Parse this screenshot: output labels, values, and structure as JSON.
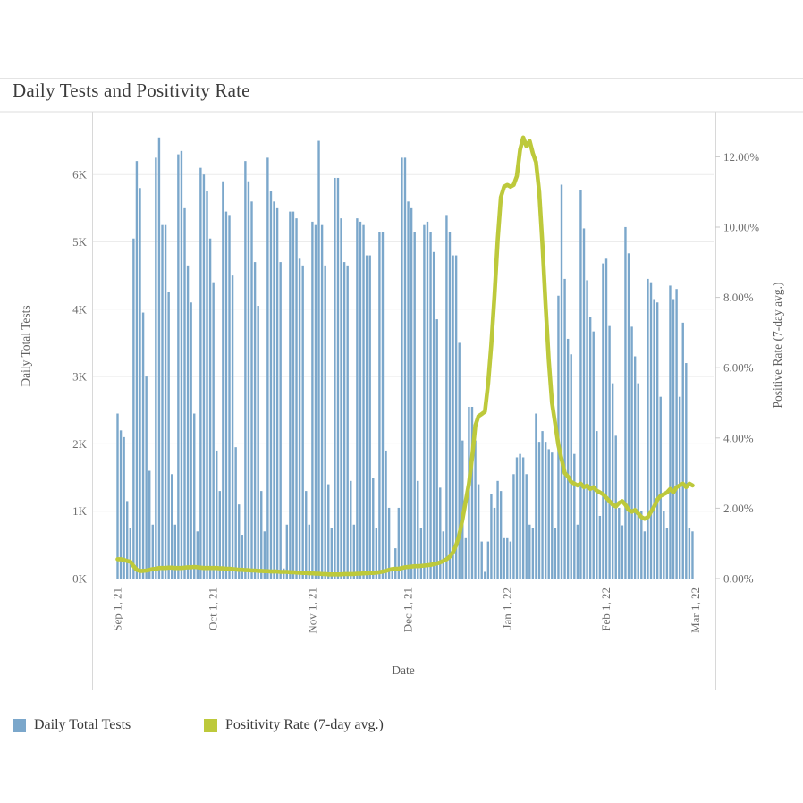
{
  "title": "Daily Tests and Positivity Rate",
  "colors": {
    "bar": "#7ba7cb",
    "line": "#bdc93b",
    "grid": "#ececec",
    "frame": "#d8d8d8",
    "tick_text": "#6e6e6e",
    "title_text": "#3b3b3b"
  },
  "legend": {
    "items": [
      {
        "label": "Daily Total Tests",
        "color": "#7ba7cb"
      },
      {
        "label": "Positivity Rate (7-day avg.)",
        "color": "#bdc93b"
      }
    ]
  },
  "chart_data": {
    "type": "combo",
    "title": "Daily Tests and Positivity Rate",
    "xlabel": "Date",
    "ylabel_left": "Daily Total Tests",
    "ylabel_right": "Positive Rate (7-day avg.)",
    "grid": "horizontal",
    "legend_position": "bottom",
    "x_unit": "day index from Sep 1, 2021",
    "x_ticks": [
      {
        "label": "Sep 1, 21",
        "day": 0
      },
      {
        "label": "Oct 1, 21",
        "day": 30
      },
      {
        "label": "Nov 1, 21",
        "day": 61
      },
      {
        "label": "Dec 1, 21",
        "day": 91
      },
      {
        "label": "Jan 1, 22",
        "day": 122
      },
      {
        "label": "Feb 1, 22",
        "day": 153
      },
      {
        "label": "Mar 1, 22",
        "day": 181
      }
    ],
    "y_left_ticks": [
      {
        "label": "0K",
        "value": 0
      },
      {
        "label": "1K",
        "value": 1000
      },
      {
        "label": "2K",
        "value": 2000
      },
      {
        "label": "3K",
        "value": 3000
      },
      {
        "label": "4K",
        "value": 4000
      },
      {
        "label": "5K",
        "value": 5000
      },
      {
        "label": "6K",
        "value": 6000
      }
    ],
    "y_right_ticks": [
      {
        "label": "0.00%",
        "value": 0
      },
      {
        "label": "2.00%",
        "value": 2
      },
      {
        "label": "4.00%",
        "value": 4
      },
      {
        "label": "6.00%",
        "value": 6
      },
      {
        "label": "8.00%",
        "value": 8
      },
      {
        "label": "10.00%",
        "value": 10
      },
      {
        "label": "12.00%",
        "value": 12
      }
    ],
    "y_left_range": [
      0,
      6900
    ],
    "y_right_range": [
      0,
      13.3
    ],
    "series": [
      {
        "name": "Daily Total Tests",
        "type": "bar",
        "axis": "left",
        "values": [
          2450,
          2200,
          2100,
          1150,
          750,
          5050,
          6200,
          5800,
          3950,
          3000,
          1600,
          800,
          6250,
          6550,
          5250,
          5250,
          4250,
          1550,
          800,
          6300,
          6350,
          5500,
          4650,
          4100,
          2450,
          700,
          6100,
          6000,
          5750,
          5050,
          4400,
          1900,
          1300,
          5900,
          5450,
          5400,
          4500,
          1950,
          1100,
          650,
          6200,
          5900,
          5600,
          4700,
          4050,
          1300,
          700,
          6250,
          5750,
          5600,
          5500,
          4700,
          150,
          800,
          5450,
          5450,
          5350,
          4750,
          4650,
          1300,
          800,
          5300,
          5250,
          6500,
          5250,
          4650,
          1400,
          750,
          5950,
          5950,
          5350,
          4700,
          4650,
          1450,
          800,
          5350,
          5300,
          5250,
          4800,
          4800,
          1500,
          750,
          5150,
          5150,
          1900,
          1050,
          150,
          450,
          1050,
          6250,
          6250,
          5600,
          5500,
          5150,
          1450,
          750,
          5250,
          5300,
          5150,
          4850,
          3850,
          1350,
          700,
          5400,
          5150,
          4800,
          4800,
          3500,
          2050,
          600,
          2550,
          2550,
          2050,
          1400,
          550,
          100,
          550,
          1250,
          1050,
          1450,
          1300,
          600,
          600,
          550,
          1550,
          1800,
          1850,
          1800,
          1550,
          800,
          750,
          2450,
          2030,
          2190,
          2030,
          1920,
          1870,
          750,
          4200,
          5850,
          4450,
          3560,
          3330,
          1850,
          800,
          5770,
          5200,
          4430,
          3890,
          3670,
          2190,
          930,
          4680,
          4750,
          3750,
          2900,
          2120,
          1050,
          790,
          5220,
          4830,
          3740,
          3300,
          2900,
          1000,
          700,
          4450,
          4400,
          4150,
          4100,
          2700,
          1000,
          750,
          4350,
          4150,
          4300,
          2700,
          3800,
          3200,
          750,
          700
        ]
      },
      {
        "name": "Positivity Rate (7-day avg.)",
        "type": "line",
        "axis": "right",
        "values": [
          0.55,
          0.55,
          0.53,
          0.5,
          0.48,
          0.35,
          0.25,
          0.22,
          0.22,
          0.23,
          0.25,
          0.27,
          0.28,
          0.3,
          0.3,
          0.3,
          0.31,
          0.31,
          0.3,
          0.3,
          0.3,
          0.31,
          0.32,
          0.32,
          0.33,
          0.32,
          0.31,
          0.3,
          0.3,
          0.3,
          0.3,
          0.3,
          0.29,
          0.29,
          0.28,
          0.28,
          0.27,
          0.26,
          0.25,
          0.25,
          0.24,
          0.24,
          0.23,
          0.23,
          0.22,
          0.22,
          0.21,
          0.21,
          0.2,
          0.2,
          0.2,
          0.19,
          0.19,
          0.19,
          0.18,
          0.18,
          0.17,
          0.17,
          0.16,
          0.16,
          0.15,
          0.15,
          0.14,
          0.14,
          0.13,
          0.13,
          0.12,
          0.12,
          0.12,
          0.12,
          0.12,
          0.13,
          0.13,
          0.13,
          0.13,
          0.14,
          0.14,
          0.15,
          0.15,
          0.16,
          0.16,
          0.17,
          0.18,
          0.2,
          0.22,
          0.25,
          0.27,
          0.28,
          0.28,
          0.3,
          0.32,
          0.33,
          0.34,
          0.35,
          0.35,
          0.36,
          0.37,
          0.38,
          0.39,
          0.41,
          0.43,
          0.46,
          0.5,
          0.55,
          0.62,
          0.75,
          0.95,
          1.25,
          1.7,
          2.2,
          2.7,
          3.45,
          4.35,
          4.62,
          4.68,
          4.75,
          5.55,
          6.65,
          8.05,
          9.65,
          10.85,
          11.15,
          11.2,
          11.15,
          11.2,
          11.45,
          12.2,
          12.55,
          12.3,
          12.45,
          12.1,
          11.85,
          11.0,
          9.5,
          7.8,
          6.2,
          5.0,
          4.4,
          3.8,
          3.4,
          3.0,
          2.9,
          2.75,
          2.7,
          2.65,
          2.7,
          2.6,
          2.65,
          2.55,
          2.6,
          2.5,
          2.45,
          2.4,
          2.3,
          2.2,
          2.1,
          2.05,
          2.15,
          2.2,
          2.1,
          1.95,
          1.9,
          1.95,
          1.85,
          1.75,
          1.7,
          1.75,
          1.9,
          2.05,
          2.25,
          2.35,
          2.4,
          2.45,
          2.55,
          2.45,
          2.6,
          2.65,
          2.7,
          2.6,
          2.7,
          2.65
        ]
      }
    ]
  }
}
